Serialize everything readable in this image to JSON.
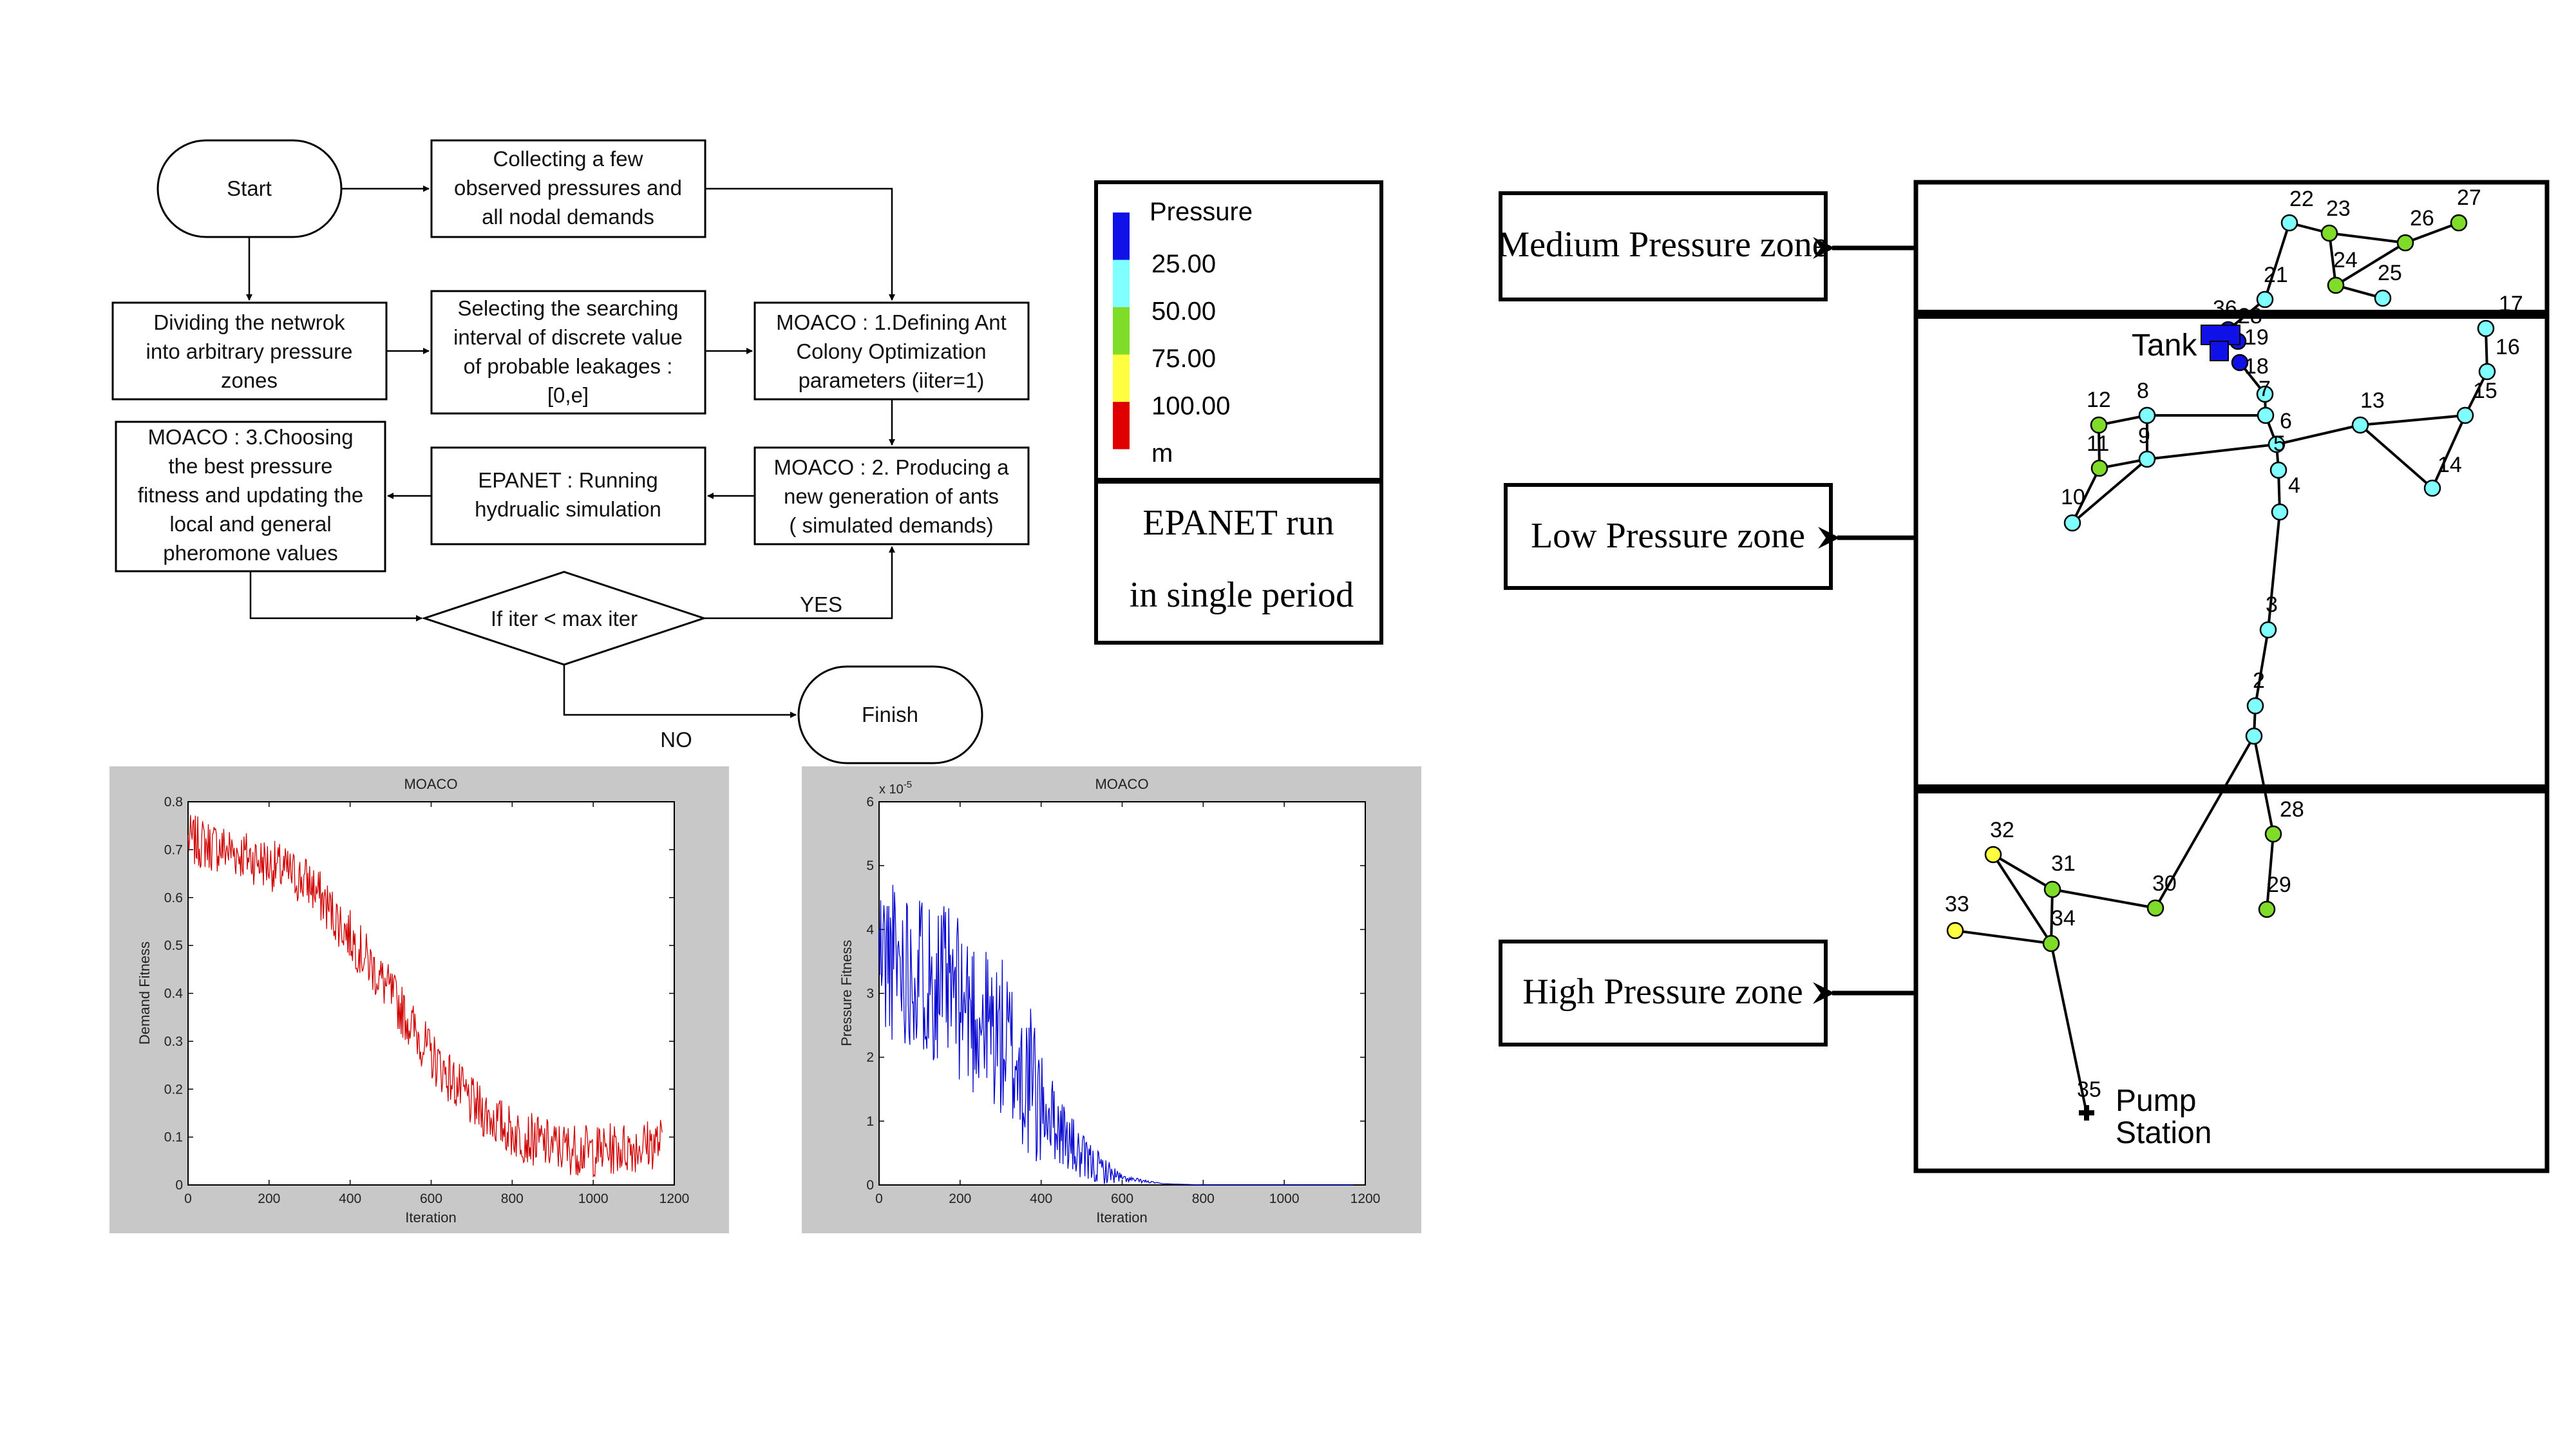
{
  "flowchart": {
    "start": "Start",
    "collect": [
      "Collecting a few",
      "observed pressures and",
      "all nodal demands"
    ],
    "divide": [
      "Dividing the netwrok",
      "into arbitrary pressure",
      "zones"
    ],
    "select": [
      "Selecting the searching",
      "interval of discrete value",
      "of probable leakages :",
      "[0,e]"
    ],
    "moaco1": [
      "MOACO : 1.Defining Ant",
      "Colony Optimization",
      "parameters (iiter=1)"
    ],
    "moaco2": [
      "MOACO : 2. Producing a",
      "new generation of ants",
      "( simulated demands)"
    ],
    "epanet": [
      "EPANET : Running",
      "hydrualic simulation"
    ],
    "moaco3": [
      "MOACO : 3.Choosing",
      "the best pressure",
      "fitness and updating the",
      "local and general",
      "pheromone values"
    ],
    "decision": "If iter < max iter",
    "yes": "YES",
    "no": "NO",
    "finish": "Finish"
  },
  "legend": {
    "title": "Pressure",
    "items": [
      {
        "color": "#1010e8",
        "label": "25.00"
      },
      {
        "color": "#7fffff",
        "label": "50.00"
      },
      {
        "color": "#7fdd2a",
        "label": "75.00"
      },
      {
        "color": "#ffff40",
        "label": "100.00"
      },
      {
        "color": "#e00000",
        "label": "m"
      }
    ],
    "caption": [
      "EPANET run",
      "in single period"
    ]
  },
  "zones": {
    "medium": "Medium Pressure zone",
    "low": "Low Pressure zone",
    "high": "High Pressure zone"
  },
  "network": {
    "tank": "Tank",
    "pump": [
      "Pump",
      "Station"
    ]
  },
  "chart_data": [
    {
      "type": "line",
      "title": "MOACO",
      "xlabel": "Iteration",
      "ylabel": "Demand Fitness",
      "xlim": [
        0,
        1200
      ],
      "ylim": [
        0,
        0.8
      ],
      "xticks": [
        "0",
        "200",
        "400",
        "600",
        "800",
        "1000",
        "1200"
      ],
      "yticks": [
        "0",
        "0.1",
        "0.2",
        "0.3",
        "0.4",
        "0.5",
        "0.6",
        "0.7",
        "0.8"
      ],
      "color": "#d00000",
      "trend": {
        "x": [
          0,
          100,
          200,
          300,
          400,
          500,
          600,
          700,
          800,
          900,
          1000,
          1100,
          1170
        ],
        "y": [
          0.72,
          0.7,
          0.67,
          0.63,
          0.52,
          0.4,
          0.27,
          0.17,
          0.11,
          0.08,
          0.07,
          0.08,
          0.09
        ]
      }
    },
    {
      "type": "line",
      "title": "MOACO",
      "xlabel": "Iteration",
      "ylabel": "Pressure Fitness",
      "xlim": [
        0,
        1200
      ],
      "ylim": [
        0,
        6
      ],
      "exponent": "x 10",
      "exponent_power": "-5",
      "xticks": [
        "0",
        "200",
        "400",
        "600",
        "800",
        "1000",
        "1200"
      ],
      "yticks": [
        "0",
        "1",
        "2",
        "3",
        "4",
        "5",
        "6"
      ],
      "color": "#0000d0",
      "trend": {
        "x": [
          0,
          100,
          200,
          300,
          400,
          500,
          600,
          700,
          800,
          1000,
          1170
        ],
        "y": [
          3.6,
          3.4,
          2.9,
          2.3,
          1.3,
          0.4,
          0.1,
          0.02,
          0.0,
          0.0,
          0.0
        ]
      }
    }
  ]
}
